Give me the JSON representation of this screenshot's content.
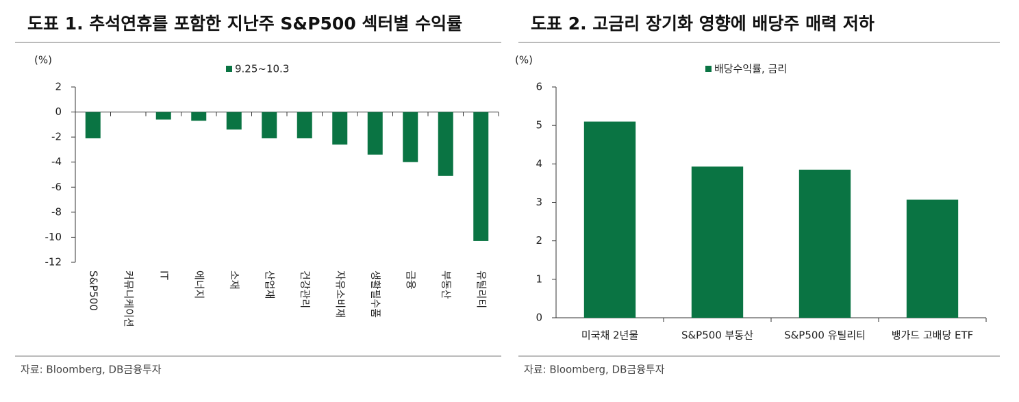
{
  "chart_data": [
    {
      "type": "bar",
      "title": "도표 1. 추석연휴를 포함한 지난주 S&P500 섹터별 수익률",
      "y_label": "(%)",
      "categories": [
        "S&P500",
        "커뮤니케이션",
        "IT",
        "에너지",
        "소재",
        "산업재",
        "건강관리",
        "자유소비재",
        "생활필수품",
        "금융",
        "부동산",
        "유틸리티"
      ],
      "series": [
        {
          "name": "9.25~10.3",
          "color": "#0a7443",
          "values": [
            -2.1,
            0,
            -0.6,
            -0.7,
            -1.4,
            -2.1,
            -2.1,
            -2.6,
            -3.4,
            -4.0,
            -5.1,
            -10.3
          ]
        }
      ],
      "ylim": [
        -12,
        2
      ],
      "yticks": [
        -12,
        -10,
        -8,
        -6,
        -4,
        -2,
        0,
        2
      ],
      "rotate_labels": true,
      "source": "자료: Bloomberg, DB금융투자"
    },
    {
      "type": "bar",
      "title": "도표 2. 고금리 장기화 영향에 배당주 매력 저하",
      "y_label": "(%)",
      "categories": [
        "미국채 2년물",
        "S&P500 부동산",
        "S&P500 유틸리티",
        "뱅가드 고배당 ETF"
      ],
      "series": [
        {
          "name": "배당수익률, 금리",
          "color": "#0a7443",
          "values": [
            5.1,
            3.93,
            3.85,
            3.07
          ]
        }
      ],
      "ylim": [
        0,
        6
      ],
      "yticks": [
        0,
        1,
        2,
        3,
        4,
        5,
        6
      ],
      "rotate_labels": false,
      "source": "자료: Bloomberg, DB금융투자"
    }
  ]
}
